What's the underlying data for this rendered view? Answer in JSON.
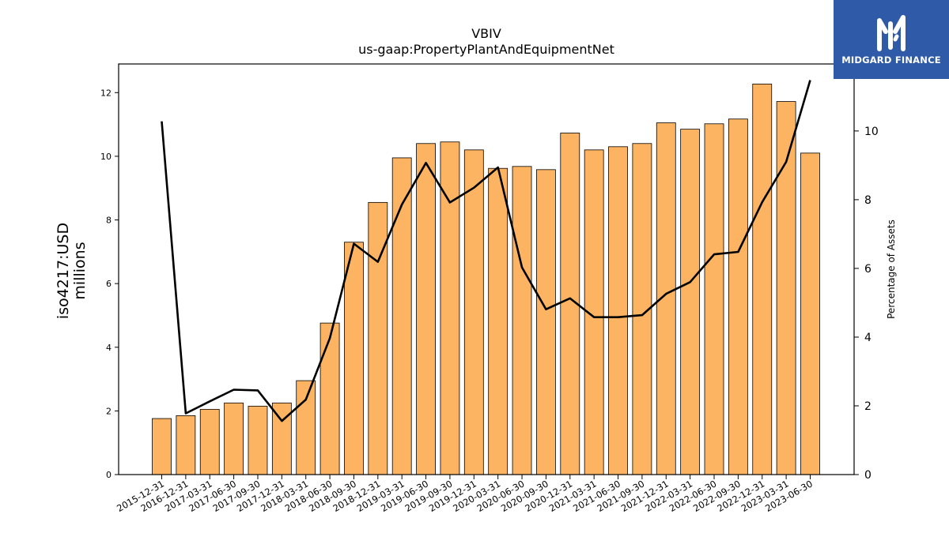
{
  "chart_data": {
    "type": "bar",
    "title": "VBIV",
    "subtitle": "us-gaap:PropertyPlantAndEquipmentNet",
    "ylabel": "iso4217:USD",
    "ylabel_unit": "millions",
    "y2label": "Percentage of Assets",
    "ylim": [
      0,
      12.9
    ],
    "y2lim": [
      0,
      11.95
    ],
    "yticks": [
      "0",
      "2",
      "4",
      "6",
      "8",
      "10",
      "12"
    ],
    "y2ticks": [
      "0",
      "2",
      "4",
      "6",
      "8",
      "10"
    ],
    "grid": false,
    "legend": "none",
    "categories": [
      "2015-12-31",
      "2016-12-31",
      "2017-03-31",
      "2017-06-30",
      "2017-09-30",
      "2017-12-31",
      "2018-03-31",
      "2018-06-30",
      "2018-09-30",
      "2018-12-31",
      "2019-03-31",
      "2019-06-30",
      "2019-09-30",
      "2019-12-31",
      "2020-03-31",
      "2020-06-30",
      "2020-09-30",
      "2020-12-31",
      "2021-03-31",
      "2021-06-30",
      "2021-09-30",
      "2021-12-31",
      "2022-03-31",
      "2022-06-30",
      "2022-09-30",
      "2022-12-31",
      "2023-03-31",
      "2023-06-30"
    ],
    "series": [
      {
        "type": "bar",
        "axis": "left",
        "color": "#fdb462",
        "values": [
          1.76,
          1.85,
          2.05,
          2.25,
          2.15,
          2.25,
          2.95,
          4.76,
          7.3,
          8.55,
          9.95,
          10.4,
          10.45,
          10.2,
          9.62,
          9.68,
          9.58,
          10.73,
          10.2,
          10.3,
          10.4,
          11.05,
          10.85,
          11.02,
          11.17,
          12.27,
          11.72,
          10.1
        ]
      },
      {
        "type": "line",
        "axis": "right",
        "color": "#000000",
        "values": [
          10.28,
          1.78,
          2.13,
          2.47,
          2.45,
          1.56,
          2.18,
          3.97,
          6.72,
          6.19,
          7.86,
          9.07,
          7.92,
          8.35,
          8.94,
          6.03,
          4.81,
          5.13,
          4.58,
          4.58,
          4.64,
          5.26,
          5.6,
          6.41,
          6.48,
          7.93,
          9.1,
          11.48
        ]
      }
    ]
  },
  "logo": {
    "text": "MIDGARD FINANCE",
    "icon": "midgard-logo-icon",
    "color": "#2f5aa8"
  }
}
